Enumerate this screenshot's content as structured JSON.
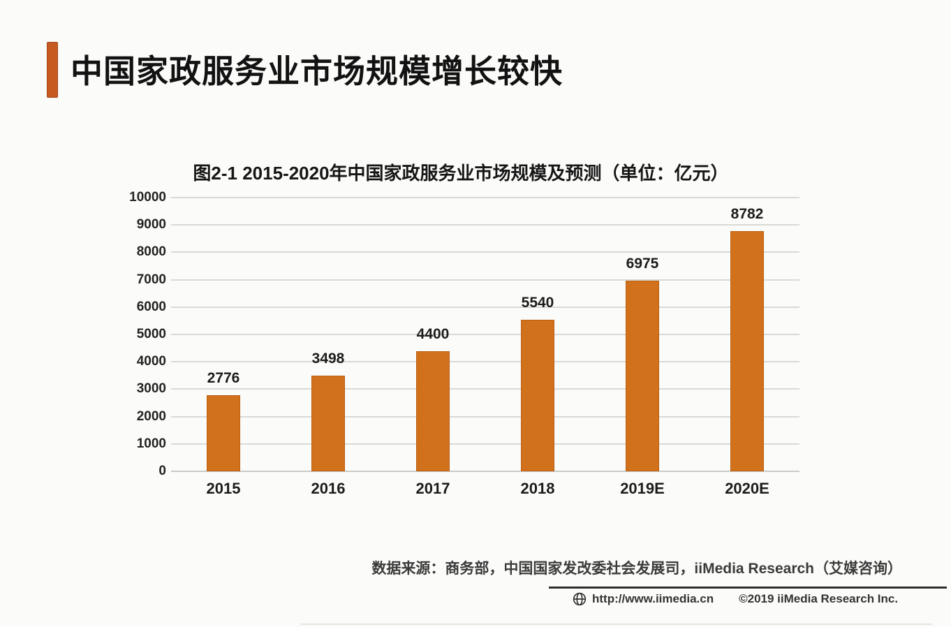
{
  "header": {
    "title": "中国家政服务业市场规模增长较快"
  },
  "chart_data": {
    "type": "bar",
    "title": "图2-1 2015-2020年中国家政服务业市场规模及预测（单位：亿元）",
    "categories": [
      "2015",
      "2016",
      "2017",
      "2018",
      "2019E",
      "2020E"
    ],
    "values": [
      2776,
      3498,
      4400,
      5540,
      6975,
      8782
    ],
    "unit": "亿元",
    "ylim": [
      0,
      10000
    ],
    "ytick_step": 1000,
    "grid": "horizontal",
    "legend": "none",
    "value_labels": true,
    "bar_color": "#d2711c"
  },
  "source_note": "数据来源：商务部，中国国家发改委社会发展司，iiMedia Research（艾媒咨询）",
  "footer": {
    "website": "http://www.iimedia.cn",
    "copyright": "©2019  iiMedia Research  Inc."
  },
  "colors": {
    "accent_bar": "#c75a20",
    "bar": "#d2711c",
    "grid_line": "#d9d9d6"
  }
}
